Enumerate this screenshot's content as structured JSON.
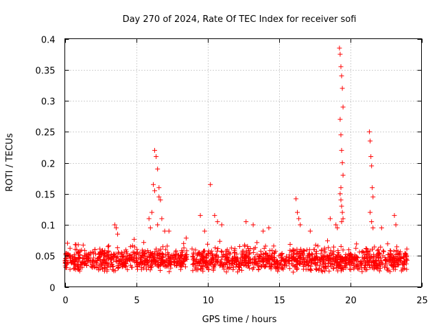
{
  "chart_data": {
    "type": "scatter",
    "title": "Day 270 of 2024, Rate Of TEC Index for receiver sofi",
    "xlabel": "GPS time / hours",
    "ylabel": "ROTI / TECUs",
    "xlim": [
      0,
      25
    ],
    "ylim": [
      0,
      0.4
    ],
    "xticks": [
      0,
      5,
      10,
      15,
      20,
      25
    ],
    "xtick_labels": [
      "0",
      "5",
      "10",
      "15",
      "20",
      "25"
    ],
    "yticks": [
      0,
      0.05,
      0.1,
      0.15,
      0.2,
      0.25,
      0.3,
      0.35,
      0.4
    ],
    "ytick_labels": [
      "0",
      "0.05",
      "0.1",
      "0.15",
      "0.2",
      "0.25",
      "0.3",
      "0.35",
      "0.4"
    ],
    "grid": true,
    "marker": "+",
    "color": "#ff0000",
    "series": [
      {
        "name": "ROTI",
        "baseline": {
          "x_ranges": [
            [
              0.0,
              8.6
            ],
            [
              8.9,
              24.0
            ]
          ],
          "y_min": 0.015,
          "y_max": 0.07,
          "points": 1600
        },
        "spikes": [
          {
            "x": [
              6.1,
              6.3,
              6.4,
              6.5,
              6.6,
              6.7
            ],
            "y": [
              0.12,
              0.22,
              0.21,
              0.19,
              0.16,
              0.14
            ]
          },
          {
            "x": [
              6.2,
              6.3,
              6.5,
              6.6,
              6.8,
              7.0
            ],
            "y": [
              0.165,
              0.155,
              0.1,
              0.145,
              0.11,
              0.09
            ]
          },
          {
            "x": [
              3.5,
              3.6,
              3.7
            ],
            "y": [
              0.1,
              0.095,
              0.085
            ]
          },
          {
            "x": [
              5.9,
              6.0,
              7.3
            ],
            "y": [
              0.11,
              0.095,
              0.09
            ]
          },
          {
            "x": [
              9.5,
              9.8,
              10.2,
              10.5,
              10.7,
              11.0
            ],
            "y": [
              0.115,
              0.09,
              0.165,
              0.115,
              0.105,
              0.1
            ]
          },
          {
            "x": [
              12.7,
              13.2,
              13.9,
              14.3
            ],
            "y": [
              0.105,
              0.1,
              0.09,
              0.095
            ]
          },
          {
            "x": [
              16.2,
              16.3,
              16.4,
              16.5,
              17.2
            ],
            "y": [
              0.142,
              0.12,
              0.11,
              0.1,
              0.09
            ]
          },
          {
            "x": [
              18.6,
              19.0,
              19.1
            ],
            "y": [
              0.11,
              0.1,
              0.095
            ]
          },
          {
            "x": [
              19.25,
              19.3,
              19.35,
              19.4,
              19.45,
              19.5
            ],
            "y": [
              0.385,
              0.375,
              0.355,
              0.34,
              0.32,
              0.29
            ]
          },
          {
            "x": [
              19.3,
              19.35,
              19.4,
              19.45,
              19.5,
              19.35
            ],
            "y": [
              0.27,
              0.245,
              0.22,
              0.2,
              0.18,
              0.16
            ]
          },
          {
            "x": [
              19.3,
              19.35,
              19.4,
              19.45,
              19.5,
              19.4
            ],
            "y": [
              0.15,
              0.14,
              0.13,
              0.12,
              0.11,
              0.105
            ]
          },
          {
            "x": [
              21.35,
              21.4,
              21.45,
              21.5,
              21.55,
              21.6
            ],
            "y": [
              0.25,
              0.235,
              0.21,
              0.195,
              0.16,
              0.145
            ]
          },
          {
            "x": [
              21.4,
              21.5,
              21.6,
              23.1,
              23.2,
              22.2
            ],
            "y": [
              0.12,
              0.105,
              0.095,
              0.115,
              0.1,
              0.095
            ]
          }
        ]
      }
    ]
  }
}
